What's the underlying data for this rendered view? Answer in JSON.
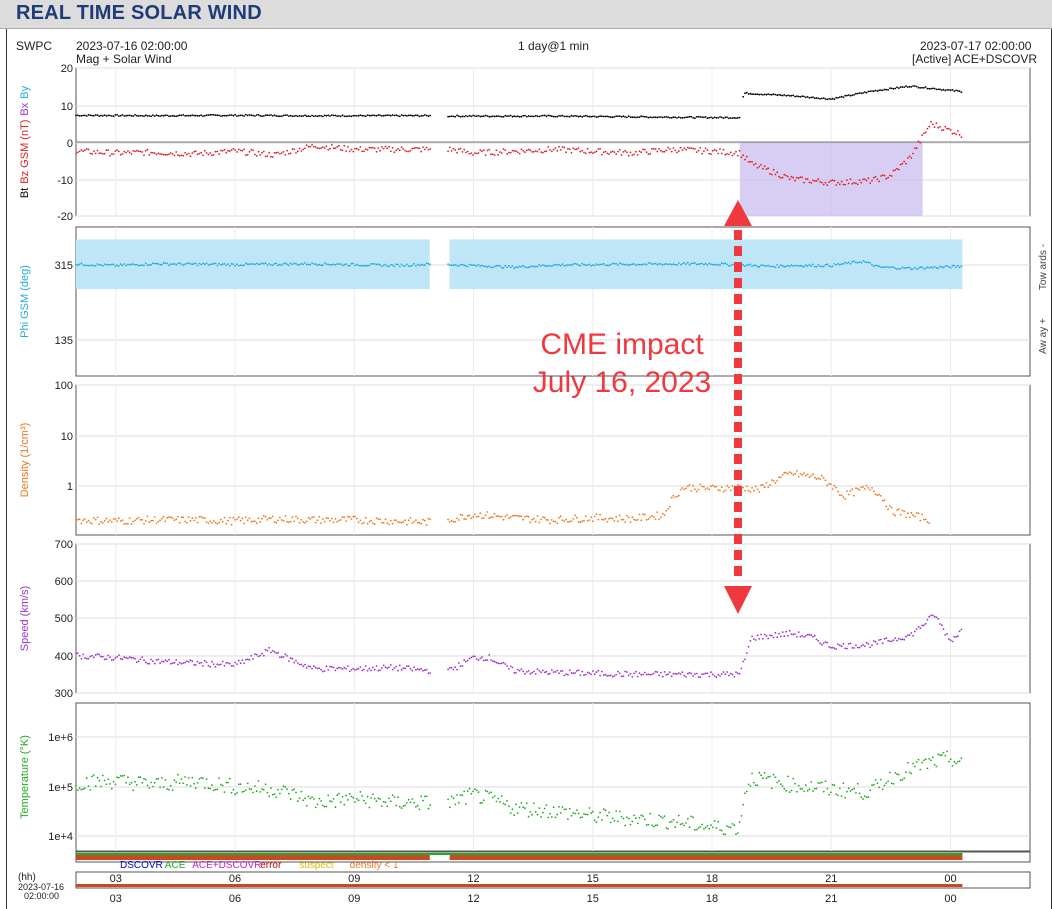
{
  "title": "REAL TIME SOLAR WIND",
  "header": {
    "source": "SWPC",
    "start": "2023-07-16 02:00:00",
    "subtitle": "Mag + Solar Wind",
    "range": "1 day@1 min",
    "end": "2023-07-17 02:00:00",
    "active": "[Active] ACE+DSCOVR"
  },
  "annotation": {
    "line1": "CME impact",
    "line2": "July 16, 2023",
    "color": "#f0383f"
  },
  "legend": [
    {
      "label": "DSCOVR",
      "color": "#0000cc"
    },
    {
      "label": "ACE",
      "color": "#22aa22"
    },
    {
      "label": "ACE+DSCOVR",
      "color": "#cc22cc"
    },
    {
      "label": "error",
      "color": "#cc0000"
    },
    {
      "label": "suspect",
      "color": "#ddbb00"
    },
    {
      "label": "density < 1",
      "color": "#ee7722"
    }
  ],
  "axis_bottom": {
    "hh": "(hh)",
    "date": "2023-07-16",
    "time": "02:00:00"
  },
  "chart_data": [
    {
      "type": "line",
      "name": "Bz Bt",
      "ylabel_parts": [
        "Bt",
        "Bz GSM (nT)",
        "Bx",
        "By"
      ],
      "ylabel_colors": [
        "#000000",
        "#e0201f",
        "#9933cc",
        "#22aadd"
      ],
      "ylim": [
        -20,
        20
      ],
      "yticks": [
        "20",
        "10",
        "0",
        "-10",
        "-20"
      ],
      "series": [
        {
          "name": "Bt",
          "color": "#000000",
          "x": [
            2,
            4,
            6,
            8,
            10.9,
            11.4,
            14,
            18,
            18.7,
            18.8,
            20,
            21,
            22,
            23,
            24.3
          ],
          "y": [
            7.2,
            7.1,
            7.2,
            7.1,
            7.1,
            7.0,
            7.0,
            6.6,
            6.6,
            13.2,
            12.5,
            11.6,
            13.7,
            15.1,
            13.6
          ]
        },
        {
          "name": "Bz",
          "color": "#e0201f",
          "x": [
            2,
            3,
            4,
            5,
            6,
            7,
            8,
            9,
            10,
            10.9,
            11.4,
            12,
            13,
            14,
            15,
            16,
            17,
            18,
            18.7,
            19,
            19.5,
            20,
            21,
            22,
            22.5,
            23,
            23.5,
            24.3
          ],
          "y": [
            -2.5,
            -3,
            -2.8,
            -3.2,
            -2.5,
            -3.5,
            -1,
            -2,
            -2,
            -2,
            -2,
            -3,
            -2.5,
            -2,
            -2.5,
            -3,
            -2,
            -2.5,
            -3,
            -6,
            -8,
            -10,
            -11,
            -10.5,
            -9,
            -4,
            5,
            2
          ]
        }
      ],
      "shaded_interval": [
        18.7,
        23.3
      ]
    },
    {
      "type": "scatter",
      "name": "Phi",
      "ylabel": "Phi GSM (deg)",
      "ylabel_color": "#22aadd",
      "right_labels": [
        "Tow ards -",
        "Aw ay +"
      ],
      "ylim": [
        45,
        405
      ],
      "yticks": [
        "315",
        "135"
      ],
      "band_intervals": [
        [
          2,
          10.9
        ],
        [
          11.4,
          24.3
        ]
      ],
      "series": [
        {
          "name": "Phi",
          "color": "#22aadd",
          "x": [
            2,
            3,
            4,
            6,
            8,
            10,
            10.9,
            11.4,
            12,
            13,
            14,
            16,
            18,
            18.7,
            19.5,
            20,
            21,
            21.8,
            22.2,
            23,
            24.3
          ],
          "y": [
            315,
            312,
            316,
            314,
            316,
            312,
            315,
            314,
            312,
            308,
            313,
            315,
            316,
            313,
            310,
            312,
            312,
            322,
            308,
            305,
            310
          ]
        }
      ]
    },
    {
      "type": "scatter",
      "name": "Density",
      "ylabel": "Density (1/cm³)",
      "ylabel_color": "#ee7722",
      "yscale": "log",
      "ylim": [
        0.1,
        100
      ],
      "yticks": [
        "100",
        "10",
        "1"
      ],
      "series": [
        {
          "name": "Density",
          "color": "#ee7722",
          "x": [
            2,
            3,
            4,
            5,
            6,
            7,
            8,
            9,
            10,
            10.9,
            11.4,
            12,
            13,
            14,
            15,
            16,
            16.8,
            17.3,
            18,
            18.7,
            19.2,
            20,
            20.7,
            21.3,
            22,
            22.5,
            23,
            23.5
          ],
          "y": [
            0.2,
            0.19,
            0.2,
            0.2,
            0.19,
            0.21,
            0.2,
            0.2,
            0.19,
            0.18,
            0.2,
            0.26,
            0.22,
            0.2,
            0.22,
            0.21,
            0.25,
            0.9,
            0.85,
            0.9,
            0.8,
            1.7,
            1.4,
            0.6,
            0.9,
            0.3,
            0.25,
            0.2
          ]
        }
      ]
    },
    {
      "type": "scatter",
      "name": "Speed",
      "ylabel": "Speed (km/s)",
      "ylabel_color": "#9933cc",
      "ylim": [
        300,
        700
      ],
      "yticks": [
        "700",
        "600",
        "500",
        "400",
        "300"
      ],
      "series": [
        {
          "name": "Speed",
          "color": "#9933cc",
          "x": [
            2,
            3,
            4,
            5,
            6,
            6.9,
            7.5,
            8,
            9,
            10,
            10.9,
            11.4,
            12,
            12.4,
            13,
            14,
            16,
            18,
            18.7,
            19,
            20,
            20.5,
            21,
            22,
            23,
            23.6,
            24,
            24.3
          ],
          "y": [
            400,
            395,
            385,
            380,
            375,
            415,
            385,
            365,
            365,
            368,
            360,
            360,
            395,
            395,
            360,
            355,
            350,
            350,
            350,
            448,
            460,
            450,
            425,
            430,
            455,
            510,
            440,
            470
          ]
        }
      ]
    },
    {
      "type": "scatter",
      "name": "Temperature",
      "ylabel": "Temperature (°K)",
      "ylabel_color": "#22aa22",
      "yscale": "log",
      "ylim": [
        6000,
        4000000
      ],
      "yticks": [
        "1e+6",
        "1e+5",
        "1e+4"
      ],
      "series": [
        {
          "name": "Temperature",
          "color": "#22aa22",
          "x": [
            2,
            3,
            4,
            5,
            6,
            7,
            8,
            9,
            10,
            10.9,
            11.4,
            12,
            13,
            14,
            15,
            16,
            17,
            18,
            18.7,
            19,
            20,
            21,
            22,
            23,
            24,
            24.3
          ],
          "y": [
            120000,
            130000,
            110000,
            130000,
            100000,
            90000,
            50000,
            60000,
            50000,
            50000,
            50000,
            70000,
            40000,
            35000,
            28000,
            25000,
            22000,
            17000,
            17000,
            150000,
            110000,
            90000,
            80000,
            220000,
            350000,
            250000
          ]
        }
      ]
    }
  ],
  "xaxis": {
    "ticks": [
      "03",
      "06",
      "09",
      "12",
      "15",
      "18",
      "21",
      "00"
    ],
    "hours": [
      3,
      6,
      9,
      12,
      15,
      18,
      21,
      24
    ],
    "xlim": [
      2,
      26
    ]
  }
}
